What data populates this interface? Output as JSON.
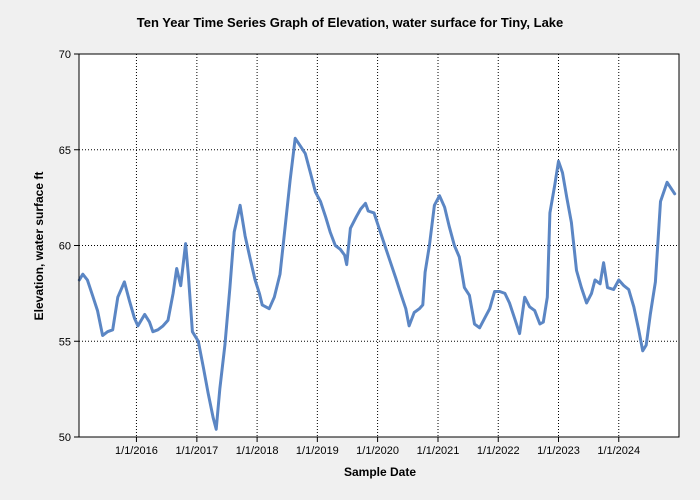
{
  "chart_data": {
    "type": "line",
    "title": "Ten Year Time Series Graph of Elevation, water surface for Tiny, Lake",
    "xlabel": "Sample Date",
    "ylabel": "Elevation, water surface ft",
    "ylim": [
      50,
      70
    ],
    "yticks": [
      50,
      55,
      60,
      65,
      70
    ],
    "xlim": [
      "2015-01-18",
      "2024-12-31"
    ],
    "xticks": [
      "1/1/2016",
      "1/1/2017",
      "1/1/2018",
      "1/1/2019",
      "1/1/2020",
      "1/1/2021",
      "1/1/2022",
      "1/1/2023",
      "1/1/2024"
    ],
    "grid": true,
    "series_color": "#5b86c4",
    "series": [
      {
        "points": [
          [
            "2015-01-20",
            58.2
          ],
          [
            "2015-02-10",
            58.5
          ],
          [
            "2015-03-10",
            58.2
          ],
          [
            "2015-04-10",
            57.4
          ],
          [
            "2015-05-10",
            56.6
          ],
          [
            "2015-06-10",
            55.3
          ],
          [
            "2015-07-10",
            55.5
          ],
          [
            "2015-08-10",
            55.6
          ],
          [
            "2015-09-10",
            57.3
          ],
          [
            "2015-10-20",
            58.1
          ],
          [
            "2015-11-20",
            57.1
          ],
          [
            "2015-12-20",
            56.2
          ],
          [
            "2016-01-10",
            55.8
          ],
          [
            "2016-02-20",
            56.4
          ],
          [
            "2016-03-20",
            56.0
          ],
          [
            "2016-04-10",
            55.5
          ],
          [
            "2016-05-10",
            55.6
          ],
          [
            "2016-06-10",
            55.8
          ],
          [
            "2016-07-10",
            56.1
          ],
          [
            "2016-08-10",
            57.5
          ],
          [
            "2016-09-01",
            58.8
          ],
          [
            "2016-09-25",
            57.9
          ],
          [
            "2016-10-25",
            60.1
          ],
          [
            "2016-11-10",
            58.5
          ],
          [
            "2016-12-05",
            55.5
          ],
          [
            "2017-01-10",
            55.0
          ],
          [
            "2017-02-10",
            53.6
          ],
          [
            "2017-03-10",
            52.3
          ],
          [
            "2017-04-10",
            51.0
          ],
          [
            "2017-04-28",
            50.4
          ],
          [
            "2017-05-20",
            52.5
          ],
          [
            "2017-06-20",
            54.8
          ],
          [
            "2017-07-20",
            57.8
          ],
          [
            "2017-08-15",
            60.7
          ],
          [
            "2017-09-20",
            62.1
          ],
          [
            "2017-10-20",
            60.5
          ],
          [
            "2017-11-20",
            59.3
          ],
          [
            "2017-12-20",
            58.2
          ],
          [
            "2018-01-15",
            57.5
          ],
          [
            "2018-02-01",
            56.9
          ],
          [
            "2018-03-15",
            56.7
          ],
          [
            "2018-04-15",
            57.3
          ],
          [
            "2018-05-20",
            58.5
          ],
          [
            "2018-06-20",
            61.0
          ],
          [
            "2018-07-20",
            63.4
          ],
          [
            "2018-08-20",
            65.6
          ],
          [
            "2018-09-20",
            65.2
          ],
          [
            "2018-10-20",
            64.8
          ],
          [
            "2018-11-20",
            63.8
          ],
          [
            "2018-12-20",
            62.8
          ],
          [
            "2019-01-20",
            62.3
          ],
          [
            "2019-02-20",
            61.5
          ],
          [
            "2019-03-20",
            60.7
          ],
          [
            "2019-04-20",
            60.0
          ],
          [
            "2019-05-20",
            59.8
          ],
          [
            "2019-06-15",
            59.5
          ],
          [
            "2019-06-28",
            59.0
          ],
          [
            "2019-07-20",
            60.9
          ],
          [
            "2019-08-25",
            61.5
          ],
          [
            "2019-09-20",
            61.9
          ],
          [
            "2019-10-20",
            62.2
          ],
          [
            "2019-11-05",
            61.8
          ],
          [
            "2019-12-10",
            61.7
          ],
          [
            "2020-01-10",
            60.9
          ],
          [
            "2020-02-10",
            60.1
          ],
          [
            "2020-03-20",
            59.1
          ],
          [
            "2020-04-20",
            58.3
          ],
          [
            "2020-05-20",
            57.5
          ],
          [
            "2020-06-20",
            56.7
          ],
          [
            "2020-07-10",
            55.8
          ],
          [
            "2020-08-10",
            56.5
          ],
          [
            "2020-09-10",
            56.7
          ],
          [
            "2020-10-01",
            56.9
          ],
          [
            "2020-10-15",
            58.6
          ],
          [
            "2020-11-10",
            60.0
          ],
          [
            "2020-12-10",
            62.1
          ],
          [
            "2021-01-10",
            62.6
          ],
          [
            "2021-02-10",
            62.0
          ],
          [
            "2021-03-10",
            61.0
          ],
          [
            "2021-04-10",
            60.0
          ],
          [
            "2021-05-10",
            59.4
          ],
          [
            "2021-06-10",
            57.8
          ],
          [
            "2021-07-10",
            57.4
          ],
          [
            "2021-08-10",
            55.9
          ],
          [
            "2021-09-10",
            55.7
          ],
          [
            "2021-10-10",
            56.2
          ],
          [
            "2021-11-10",
            56.7
          ],
          [
            "2021-12-10",
            57.6
          ],
          [
            "2022-01-10",
            57.6
          ],
          [
            "2022-02-10",
            57.5
          ],
          [
            "2022-03-10",
            57.0
          ],
          [
            "2022-04-10",
            56.2
          ],
          [
            "2022-05-10",
            55.4
          ],
          [
            "2022-06-10",
            57.3
          ],
          [
            "2022-07-10",
            56.8
          ],
          [
            "2022-08-10",
            56.6
          ],
          [
            "2022-09-10",
            55.9
          ],
          [
            "2022-10-01",
            56.0
          ],
          [
            "2022-10-25",
            57.3
          ],
          [
            "2022-11-10",
            61.7
          ],
          [
            "2022-12-10",
            63.2
          ],
          [
            "2023-01-01",
            64.4
          ],
          [
            "2023-01-25",
            63.8
          ],
          [
            "2023-02-20",
            62.5
          ],
          [
            "2023-03-20",
            61.2
          ],
          [
            "2023-04-20",
            58.7
          ],
          [
            "2023-05-20",
            57.8
          ],
          [
            "2023-06-20",
            57.0
          ],
          [
            "2023-07-20",
            57.5
          ],
          [
            "2023-08-10",
            58.2
          ],
          [
            "2023-09-10",
            58.0
          ],
          [
            "2023-10-01",
            59.1
          ],
          [
            "2023-10-25",
            57.8
          ],
          [
            "2023-12-01",
            57.7
          ],
          [
            "2024-01-01",
            58.2
          ],
          [
            "2024-02-01",
            57.9
          ],
          [
            "2024-03-01",
            57.7
          ],
          [
            "2024-04-01",
            56.8
          ],
          [
            "2024-05-01",
            55.6
          ],
          [
            "2024-05-25",
            54.5
          ],
          [
            "2024-06-15",
            54.8
          ],
          [
            "2024-07-10",
            56.4
          ],
          [
            "2024-08-10",
            58.1
          ],
          [
            "2024-09-10",
            62.3
          ],
          [
            "2024-10-20",
            63.3
          ],
          [
            "2024-12-05",
            62.7
          ]
        ]
      }
    ]
  }
}
